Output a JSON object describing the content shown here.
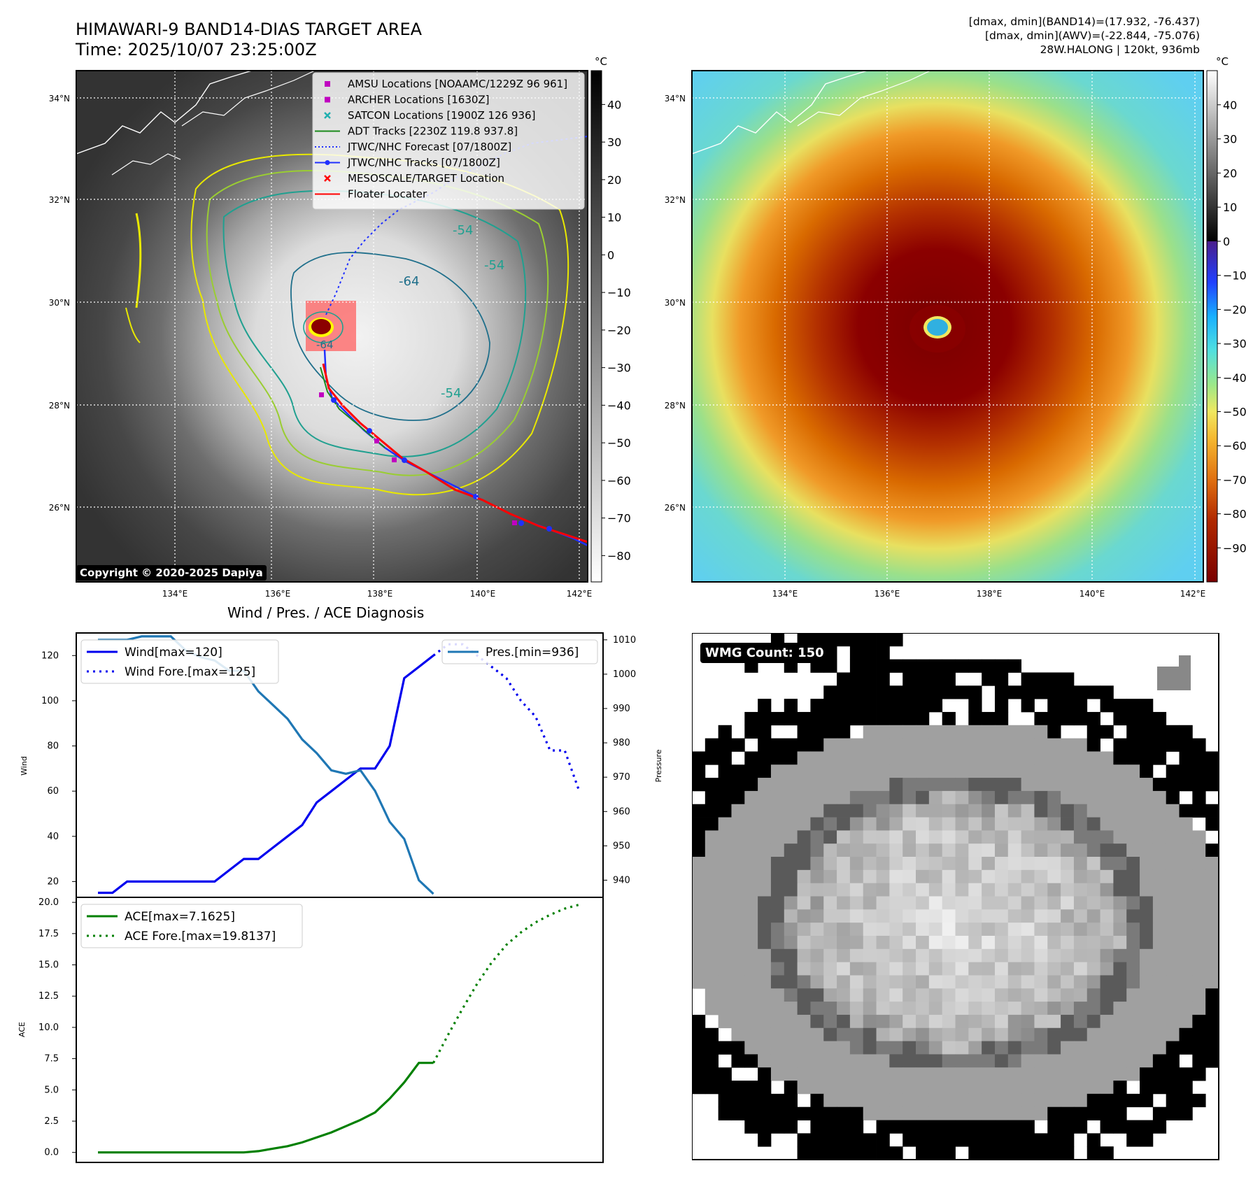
{
  "header": {
    "title_line1": "HIMAWARI-9 BAND14-DIAS TARGET AREA",
    "title_line2": "Time: 2025/10/07 23:25:00Z",
    "stats_line1": "[dmax, dmin](BAND14)=(17.932, -76.437)",
    "stats_line2": "[dmax, dmin](AWV)=(-22.844, -75.076)",
    "stats_line3": "28W.HALONG | 120kt, 936mb"
  },
  "map": {
    "lat_labels": [
      "34°N",
      "32°N",
      "30°N",
      "28°N",
      "26°N"
    ],
    "lon_labels": [
      "134°E",
      "136°E",
      "138°E",
      "140°E",
      "142°E"
    ],
    "copyright": "Copyright © 2020-2025 Dapiya",
    "contour_labels": [
      "-64",
      "-54",
      "-54",
      "-54",
      "-64"
    ],
    "colorbar_unit": "°C",
    "gray_ticks": [
      "40",
      "30",
      "20",
      "10",
      "0",
      "−10",
      "−20",
      "−30",
      "−40",
      "−50",
      "−60",
      "−70",
      "−80"
    ],
    "color_ticks": [
      "40",
      "30",
      "20",
      "10",
      "0",
      "−10",
      "−20",
      "−30",
      "−40",
      "−50",
      "−60",
      "−70",
      "−80",
      "−90"
    ],
    "legend": [
      {
        "label": "AMSU Locations [NOAAMC/1229Z 96 961]",
        "color": "#c000c0",
        "marker": "square"
      },
      {
        "label": "ARCHER Locations [1630Z]",
        "color": "#c000c0",
        "marker": "square"
      },
      {
        "label": "SATCON Locations [1900Z 126 936]",
        "color": "#20b0b0",
        "marker": "x"
      },
      {
        "label": "ADT Tracks [2230Z 119.8 937.8]",
        "color": "#1a8a1a",
        "marker": "line"
      },
      {
        "label": "JTWC/NHC Forecast [07/1800Z]",
        "color": "#2030ff",
        "marker": "dotted"
      },
      {
        "label": "JTWC/NHC Tracks [07/1800Z]",
        "color": "#2030ff",
        "marker": "dotline"
      },
      {
        "label": "MESOSCALE/TARGET Location",
        "color": "#ff0000",
        "marker": "x"
      },
      {
        "label": "Floater Locater",
        "color": "#ff0000",
        "marker": "line"
      }
    ]
  },
  "diagnosis": {
    "title": "Wind / Pres. / ACE Diagnosis",
    "wmg_label": "WMG Count: 150"
  },
  "chart_data": [
    {
      "type": "line",
      "title": "Wind / Pres. / ACE Diagnosis",
      "xlabel": "",
      "ylabel": "Wind",
      "ylabel_right": "Pressure",
      "ylim": [
        13,
        130
      ],
      "ylim_right": [
        935,
        1012
      ],
      "yticks": [
        20,
        40,
        60,
        80,
        100,
        120
      ],
      "yticks_right": [
        940,
        950,
        960,
        970,
        980,
        990,
        1000,
        1010
      ],
      "series": [
        {
          "name": "Wind[max=120]",
          "color": "#0000ee",
          "style": "solid",
          "x": [
            0,
            1,
            2,
            3,
            4,
            5,
            6,
            7,
            8,
            9,
            10,
            11,
            12,
            13,
            14,
            15,
            16,
            17,
            18,
            19,
            20,
            21,
            22,
            23
          ],
          "values": [
            15,
            15,
            20,
            20,
            20,
            20,
            20,
            20,
            20,
            25,
            30,
            30,
            35,
            40,
            45,
            55,
            60,
            65,
            70,
            70,
            80,
            110,
            115,
            120
          ]
        },
        {
          "name": "Wind Fore.[max=125]",
          "color": "#0000ee",
          "style": "dotted",
          "x": [
            23,
            24,
            25,
            26,
            27,
            28,
            29,
            30,
            31,
            32,
            33
          ],
          "values": [
            120,
            125,
            125,
            120,
            115,
            110,
            100,
            93,
            78,
            78,
            60
          ]
        },
        {
          "name": "Pres.[min=936]",
          "color": "#1f77b4",
          "style": "solid",
          "axis": "right",
          "x": [
            0,
            1,
            2,
            3,
            4,
            5,
            6,
            7,
            8,
            9,
            10,
            11,
            12,
            13,
            14,
            15,
            16,
            17,
            18,
            19,
            20,
            21,
            22,
            23
          ],
          "values": [
            1010,
            1010,
            1010,
            1011,
            1011,
            1011,
            1007,
            1005,
            1004,
            1001,
            1001,
            995,
            991,
            987,
            981,
            977,
            972,
            971,
            972,
            966,
            957,
            952,
            940,
            936
          ]
        }
      ]
    },
    {
      "type": "line",
      "xlabel": "",
      "ylabel": "ACE",
      "ylim": [
        -0.8,
        20.4
      ],
      "yticks": [
        0.0,
        2.5,
        5.0,
        7.5,
        10.0,
        12.5,
        15.0,
        17.5,
        20.0
      ],
      "ytick_labels": [
        "0.0",
        "2.5",
        "5.0",
        "7.5",
        "10.0",
        "12.5",
        "15.0",
        "17.5",
        "20.0"
      ],
      "series": [
        {
          "name": "ACE[max=7.1625]",
          "color": "#008000",
          "style": "solid",
          "x": [
            0,
            1,
            2,
            3,
            4,
            5,
            6,
            7,
            8,
            9,
            10,
            11,
            12,
            13,
            14,
            15,
            16,
            17,
            18,
            19,
            20,
            21,
            22,
            23
          ],
          "values": [
            0,
            0,
            0,
            0,
            0,
            0,
            0,
            0,
            0,
            0,
            0,
            0.1,
            0.3,
            0.5,
            0.8,
            1.2,
            1.6,
            2.1,
            2.6,
            3.2,
            4.3,
            5.6,
            7.1625,
            7.1625
          ]
        },
        {
          "name": "ACE Fore.[max=19.8137]",
          "color": "#008000",
          "style": "dotted",
          "x": [
            23,
            24,
            25,
            26,
            27,
            28,
            29,
            30,
            31,
            32,
            33
          ],
          "values": [
            7.1625,
            9.4,
            11.5,
            13.5,
            15.2,
            16.6,
            17.6,
            18.4,
            19.0,
            19.5,
            19.8137
          ]
        }
      ]
    }
  ]
}
